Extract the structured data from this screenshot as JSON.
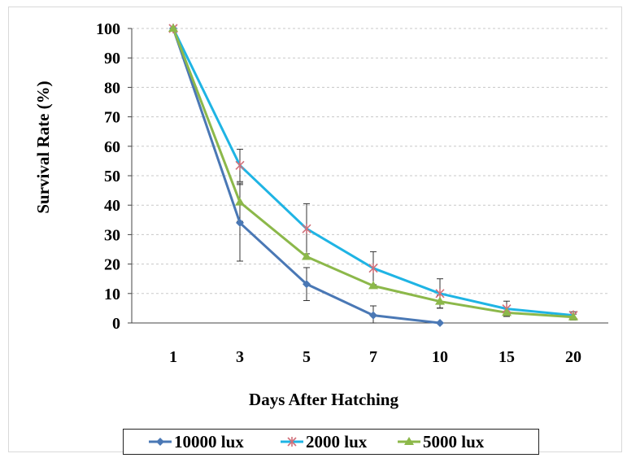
{
  "chart_data": {
    "type": "line",
    "xlabel": "Days After Hatching",
    "ylabel": "Survival  Rate (%)",
    "categories": [
      "1",
      "3",
      "5",
      "7",
      "10",
      "15",
      "20"
    ],
    "ylim": [
      0,
      100
    ],
    "yticks": [
      0,
      10,
      20,
      30,
      40,
      50,
      60,
      70,
      80,
      90,
      100
    ],
    "grid": "horizontal dashed",
    "legend": "bottom",
    "series": [
      {
        "name": "10000 lux",
        "color": "#4a78b5",
        "marker": "diamond",
        "values": [
          100,
          34,
          13.2,
          2.6,
          0,
          null,
          null
        ],
        "errors": [
          null,
          13,
          5.6,
          3.2,
          null,
          null,
          null
        ]
      },
      {
        "name": "2000 lux",
        "color": "#1fb4e4",
        "marker": "star",
        "values": [
          100,
          53.5,
          32,
          18.6,
          10,
          4.8,
          2.6
        ],
        "errors": [
          null,
          5.5,
          8.5,
          5.6,
          5,
          2.6,
          1.2
        ]
      },
      {
        "name": "5000 lux",
        "color": "#8cb84a",
        "marker": "triangle",
        "values": [
          100,
          41,
          22.5,
          12.6,
          7.3,
          3.5,
          2
        ],
        "errors": [
          null,
          6.5,
          null,
          null,
          2.2,
          1.2,
          1
        ]
      }
    ]
  }
}
